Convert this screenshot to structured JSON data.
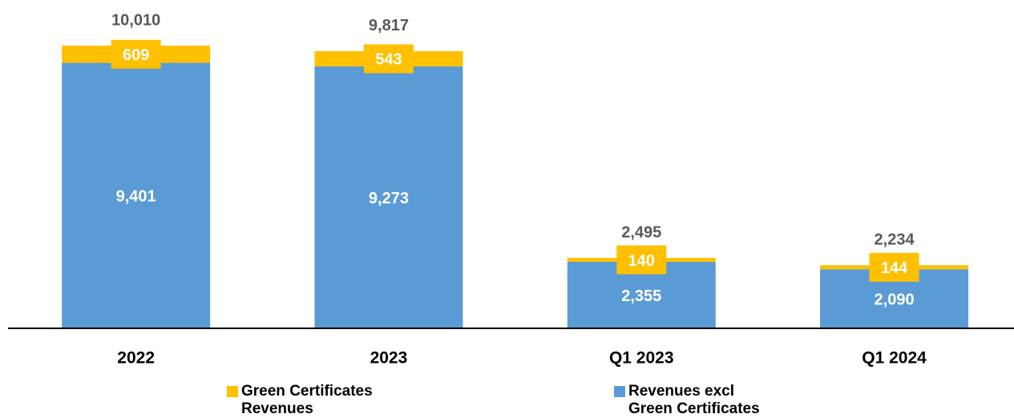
{
  "chart_data": {
    "type": "stacked_bar",
    "categories": [
      "2022",
      "2023",
      "Q1 2023",
      "Q1 2024"
    ],
    "series": [
      {
        "name": "Revenues excl Green Certificates",
        "color": "#5b9bd5",
        "values": [
          9401,
          9273,
          2355,
          2090
        ],
        "value_labels": [
          "9,401",
          "9,273",
          "2,355",
          "2,090"
        ]
      },
      {
        "name": "Green Certificates Revenues",
        "color": "#ffc000",
        "values": [
          609,
          543,
          140,
          144
        ]
      }
    ],
    "totals": [
      10010,
      9817,
      2495,
      2234
    ],
    "total_labels": [
      "10,010",
      "9,817",
      "2,495",
      "2,234"
    ]
  }
}
